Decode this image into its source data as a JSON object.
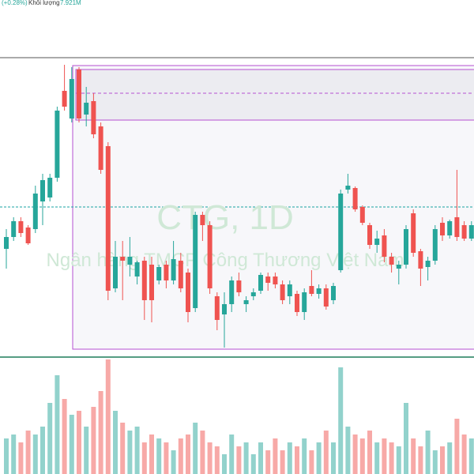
{
  "header": {
    "change": "(+0.28%)",
    "volume_label": "Khối lượng",
    "volume_value": "7.921M"
  },
  "watermark": {
    "symbol": "CTG, 1D",
    "name": "Ngân hàng TMCP Công Thương Việt Nam"
  },
  "chart_data": {
    "type": "candlestick",
    "up_color": "#26a69a",
    "down_color": "#ef5350",
    "ylim": [
      0,
      390
    ],
    "open": [
      145,
      160,
      180,
      172,
      170,
      205,
      210,
      235,
      345,
      310,
      372,
      315,
      332,
      300,
      275,
      95,
      135,
      125,
      110,
      130,
      125,
      105,
      125,
      105,
      130,
      115,
      70,
      188,
      175,
      85,
      62,
      75,
      105,
      75,
      85,
      92,
      110,
      110,
      100,
      85,
      88,
      65,
      98,
      88,
      95,
      80,
      118,
      220,
      222,
      198,
      175,
      150,
      162,
      135,
      120,
      125,
      190,
      142,
      122,
      130,
      178,
      162,
      185,
      175,
      158
    ],
    "high": [
      170,
      185,
      185,
      175,
      225,
      240,
      240,
      325,
      378,
      375,
      375,
      350,
      342,
      305,
      280,
      155,
      155,
      160,
      130,
      135,
      135,
      125,
      130,
      155,
      140,
      120,
      192,
      192,
      180,
      90,
      90,
      110,
      115,
      85,
      95,
      115,
      115,
      115,
      105,
      105,
      92,
      95,
      118,
      100,
      100,
      102,
      220,
      240,
      224,
      200,
      178,
      168,
      170,
      140,
      130,
      175,
      195,
      145,
      135,
      175,
      185,
      182,
      245,
      180,
      180
    ],
    "low": [
      120,
      155,
      160,
      150,
      165,
      175,
      205,
      230,
      320,
      305,
      305,
      300,
      285,
      240,
      80,
      90,
      80,
      110,
      100,
      55,
      52,
      100,
      95,
      100,
      90,
      52,
      65,
      155,
      88,
      42,
      20,
      65,
      85,
      65,
      80,
      88,
      92,
      95,
      75,
      75,
      60,
      55,
      85,
      82,
      68,
      75,
      115,
      215,
      192,
      175,
      145,
      140,
      128,
      115,
      100,
      120,
      135,
      98,
      105,
      125,
      155,
      158,
      155,
      155,
      155
    ],
    "close": [
      160,
      180,
      165,
      152,
      215,
      232,
      235,
      320,
      325,
      360,
      310,
      330,
      290,
      245,
      92,
      135,
      130,
      135,
      128,
      80,
      80,
      122,
      105,
      132,
      95,
      65,
      188,
      175,
      95,
      55,
      75,
      105,
      90,
      80,
      90,
      112,
      102,
      100,
      80,
      100,
      65,
      90,
      88,
      95,
      72,
      98,
      215,
      225,
      195,
      178,
      150,
      158,
      135,
      125,
      125,
      170,
      140,
      120,
      130,
      170,
      162,
      180,
      160,
      158,
      175
    ],
    "volume": [
      45,
      50,
      40,
      55,
      50,
      60,
      90,
      125,
      95,
      75,
      80,
      60,
      85,
      105,
      145,
      80,
      65,
      55,
      60,
      40,
      50,
      45,
      40,
      30,
      45,
      50,
      65,
      55,
      40,
      35,
      25,
      50,
      35,
      40,
      25,
      40,
      30,
      45,
      30,
      40,
      35,
      45,
      30,
      40,
      55,
      40,
      135,
      60,
      50,
      45,
      55,
      40,
      45,
      40,
      35,
      90,
      45,
      35,
      55,
      30,
      35,
      40,
      70,
      50,
      45
    ],
    "volume_lim": [
      0,
      150
    ]
  }
}
